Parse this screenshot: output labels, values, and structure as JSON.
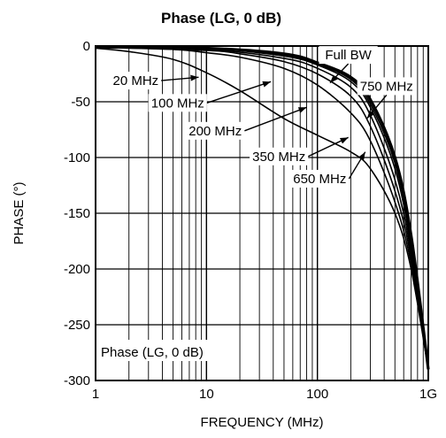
{
  "chart_data": {
    "type": "line",
    "title": "Phase (LG, 0 dB)",
    "xlabel": "FREQUENCY (MHz)",
    "ylabel": "PHASE (°)",
    "x_scale": "log",
    "xlim": [
      1,
      1000
    ],
    "ylim": [
      -300,
      0
    ],
    "x_ticks": [
      {
        "value": 1,
        "label": "1"
      },
      {
        "value": 10,
        "label": "10"
      },
      {
        "value": 100,
        "label": "100"
      },
      {
        "value": 1000,
        "label": "1G"
      }
    ],
    "y_ticks": [
      {
        "value": 0,
        "label": "0"
      },
      {
        "value": -50,
        "label": "-50"
      },
      {
        "value": -100,
        "label": "-100"
      },
      {
        "value": -150,
        "label": "-150"
      },
      {
        "value": -200,
        "label": "-200"
      },
      {
        "value": -250,
        "label": "-250"
      },
      {
        "value": -300,
        "label": "-300"
      }
    ],
    "grid": true,
    "inset_label": "Phase (LG, 0 dB)",
    "series": [
      {
        "name": "20 MHz",
        "x": [
          1,
          2,
          5,
          10,
          20,
          50,
          100,
          200,
          300,
          500,
          700,
          1000
        ],
        "y": [
          -2,
          -5,
          -12,
          -24,
          -40,
          -65,
          -80,
          -95,
          -110,
          -150,
          -200,
          -290
        ]
      },
      {
        "name": "100 MHz",
        "x": [
          1,
          5,
          10,
          20,
          50,
          100,
          200,
          300,
          500,
          700,
          1000
        ],
        "y": [
          -1,
          -3,
          -6,
          -10,
          -20,
          -35,
          -60,
          -85,
          -140,
          -195,
          -290
        ]
      },
      {
        "name": "200 MHz",
        "x": [
          1,
          10,
          20,
          50,
          100,
          200,
          300,
          500,
          700,
          1000
        ],
        "y": [
          -1,
          -4,
          -7,
          -14,
          -25,
          -45,
          -72,
          -130,
          -190,
          -290
        ]
      },
      {
        "name": "350 MHz",
        "x": [
          1,
          10,
          50,
          100,
          200,
          300,
          500,
          700,
          1000
        ],
        "y": [
          -1,
          -3,
          -11,
          -20,
          -37,
          -62,
          -120,
          -185,
          -290
        ]
      },
      {
        "name": "650 MHz",
        "x": [
          1,
          10,
          50,
          100,
          200,
          300,
          500,
          700,
          1000
        ],
        "y": [
          -1,
          -2,
          -9,
          -17,
          -32,
          -55,
          -110,
          -180,
          -290
        ]
      },
      {
        "name": "750 MHz",
        "x": [
          1,
          10,
          50,
          100,
          200,
          300,
          500,
          700,
          1000
        ],
        "y": [
          -1,
          -2,
          -8,
          -16,
          -30,
          -52,
          -105,
          -175,
          -290
        ]
      },
      {
        "name": "Full BW",
        "x": [
          1,
          10,
          50,
          100,
          200,
          300,
          500,
          700,
          1000
        ],
        "y": [
          -1,
          -2,
          -7,
          -15,
          -28,
          -48,
          -100,
          -170,
          -290
        ]
      }
    ],
    "annotations": [
      {
        "text": "Full BW",
        "x": 190,
        "y": -12,
        "target": [
          130,
          -33
        ]
      },
      {
        "text": "750 MHz",
        "x": 420,
        "y": -40,
        "target": [
          280,
          -65
        ]
      },
      {
        "text": "20 MHz",
        "x": 2.3,
        "y": -35,
        "target": [
          8.5,
          -28
        ]
      },
      {
        "text": "100 MHz",
        "x": 5.5,
        "y": -55,
        "target": [
          38,
          -32
        ]
      },
      {
        "text": "200 MHz",
        "x": 12,
        "y": -80,
        "target": [
          80,
          -55
        ]
      },
      {
        "text": "350 MHz",
        "x": 45,
        "y": -103,
        "target": [
          190,
          -82
        ]
      },
      {
        "text": "650 MHz",
        "x": 105,
        "y": -123,
        "target": [
          270,
          -95
        ]
      }
    ]
  }
}
